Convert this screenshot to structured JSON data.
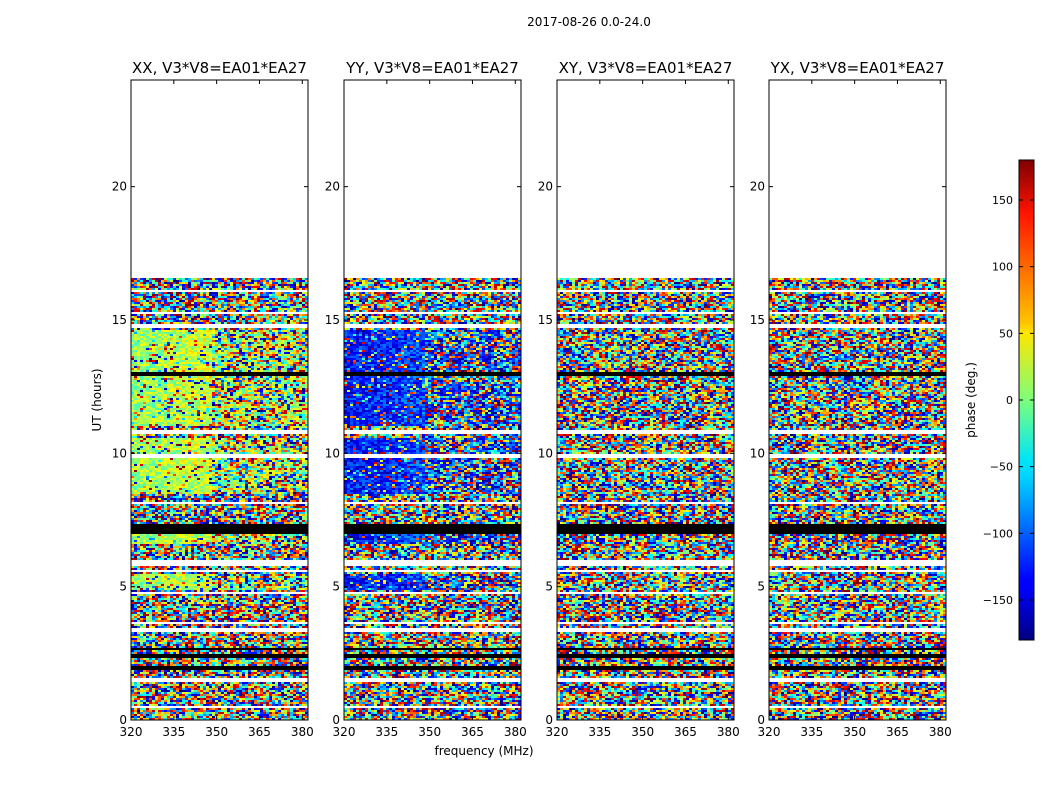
{
  "figure_title": "2017-08-26 0.0-24.0",
  "chart_data": {
    "type": "heatmap",
    "x_label": "frequency (MHz)",
    "y_label": "UT (hours)",
    "xlim": [
      320,
      382
    ],
    "ylim": [
      0,
      24
    ],
    "x_ticks": [
      320,
      335,
      350,
      365,
      380
    ],
    "y_ticks": [
      0,
      5,
      10,
      15,
      20
    ],
    "data_coverage_hours": [
      0,
      16.7
    ],
    "panels": [
      {
        "title": "XX, V3*V8=EA01*EA27",
        "dominant_phase_deg": 20,
        "note": "green/yellow/orange coherent phase below 350 MHz"
      },
      {
        "title": "YY, V3*V8=EA01*EA27",
        "dominant_phase_deg": -120,
        "note": "blue coherent phase below 350 MHz"
      },
      {
        "title": "XY, V3*V8=EA01*EA27",
        "dominant_phase_deg": null,
        "note": "noise-like phase"
      },
      {
        "title": "YX, V3*V8=EA01*EA27",
        "dominant_phase_deg": null,
        "note": "noise-like phase"
      }
    ],
    "blank_bands_hours": [
      [
        0.45,
        0.55
      ],
      [
        1.45,
        1.6
      ],
      [
        3.3,
        3.45
      ],
      [
        3.6,
        3.7
      ],
      [
        4.7,
        4.8
      ],
      [
        5.55,
        5.65
      ],
      [
        5.8,
        6.0
      ],
      [
        8.1,
        8.2
      ],
      [
        9.8,
        9.95
      ],
      [
        10.75,
        10.85
      ],
      [
        14.7,
        14.85
      ],
      [
        15.2,
        15.3
      ],
      [
        16.05,
        16.15
      ],
      [
        16.55,
        16.65
      ]
    ],
    "black_bands_hours": [
      [
        1.9,
        2.05
      ],
      [
        2.3,
        2.45
      ],
      [
        2.6,
        2.7
      ],
      [
        7.0,
        7.35
      ],
      [
        12.9,
        13.05
      ]
    ],
    "colorbar": {
      "label": "phase (deg.)",
      "range": [
        -180,
        180
      ],
      "ticks": [
        -150,
        -100,
        -50,
        0,
        50,
        100,
        150
      ],
      "tick_labels": [
        "−150",
        "−100",
        "−50",
        "0",
        "50",
        "100",
        "150"
      ],
      "colormap": "jet"
    }
  }
}
